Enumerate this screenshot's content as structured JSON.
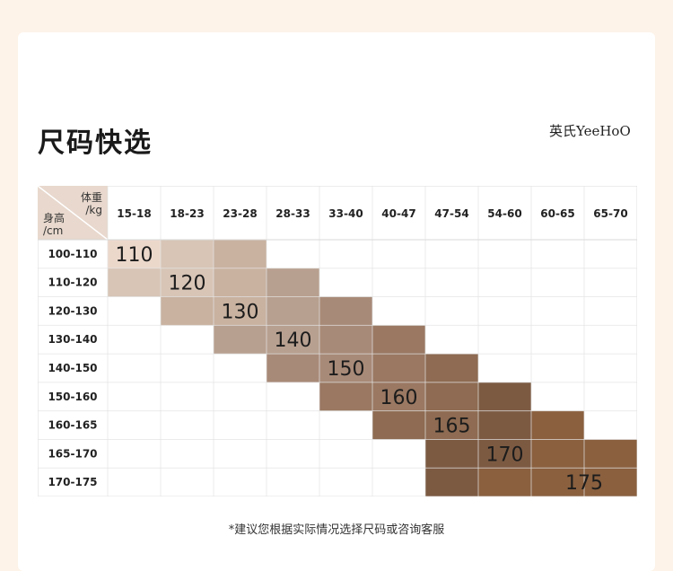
{
  "page": {
    "title": "尺码快选",
    "brand": "英氏YeeHoO",
    "footnote": "*建议您根据实际情况选择尺码或咨询客服"
  },
  "chart_data": {
    "type": "table",
    "corner": {
      "col_header": "体重\n/kg",
      "row_header": "身高\n/cm"
    },
    "columns": [
      "15-18",
      "18-23",
      "23-28",
      "28-33",
      "33-40",
      "40-47",
      "47-54",
      "54-60",
      "60-65",
      "65-70"
    ],
    "rows": [
      "100-110",
      "110-120",
      "120-130",
      "130-140",
      "140-150",
      "150-160",
      "160-165",
      "165-170",
      "170-175"
    ],
    "sizes": [
      {
        "size": "110",
        "cells": [
          [
            0,
            0
          ],
          [
            0,
            1
          ],
          [
            1,
            0
          ],
          [
            1,
            1
          ]
        ],
        "color": "#ecd8cb"
      },
      {
        "size": "120",
        "cells": [
          [
            0,
            1
          ],
          [
            0,
            2
          ],
          [
            1,
            0
          ],
          [
            1,
            1
          ],
          [
            1,
            2
          ],
          [
            2,
            1
          ],
          [
            2,
            2
          ]
        ],
        "color": "#d8c5b6"
      },
      {
        "size": "130",
        "cells": [
          [
            0,
            2
          ],
          [
            1,
            2
          ],
          [
            2,
            1
          ],
          [
            2,
            2
          ],
          [
            2,
            3
          ],
          [
            3,
            2
          ],
          [
            3,
            3
          ]
        ],
        "color": "#c9b2a0"
      },
      {
        "size": "140",
        "cells": [
          [
            1,
            3
          ],
          [
            2,
            3
          ],
          [
            3,
            2
          ],
          [
            3,
            3
          ],
          [
            3,
            4
          ],
          [
            4,
            3
          ],
          [
            4,
            4
          ]
        ],
        "color": "#b8a090"
      },
      {
        "size": "150",
        "cells": [
          [
            2,
            4
          ],
          [
            3,
            4
          ],
          [
            4,
            3
          ],
          [
            4,
            4
          ],
          [
            4,
            5
          ],
          [
            5,
            4
          ],
          [
            5,
            5
          ]
        ],
        "color": "#a88a78"
      },
      {
        "size": "160",
        "cells": [
          [
            3,
            5
          ],
          [
            4,
            5
          ],
          [
            5,
            4
          ],
          [
            5,
            5
          ],
          [
            5,
            6
          ],
          [
            6,
            5
          ],
          [
            6,
            6
          ]
        ],
        "color": "#9a7862"
      },
      {
        "size": "165",
        "cells": [
          [
            4,
            6
          ],
          [
            5,
            6
          ],
          [
            6,
            5
          ],
          [
            6,
            6
          ],
          [
            6,
            7
          ],
          [
            7,
            6
          ],
          [
            7,
            7
          ]
        ],
        "color": "#8e6b52"
      },
      {
        "size": "170",
        "cells": [
          [
            5,
            7
          ],
          [
            6,
            7
          ],
          [
            7,
            6
          ],
          [
            7,
            7
          ],
          [
            7,
            8
          ],
          [
            8,
            6
          ],
          [
            8,
            7
          ],
          [
            8,
            8
          ]
        ],
        "color": "#7c5a42"
      },
      {
        "size": "175",
        "cells": [
          [
            6,
            8
          ],
          [
            7,
            8
          ],
          [
            7,
            9
          ],
          [
            8,
            7
          ],
          [
            8,
            8
          ],
          [
            8,
            9
          ]
        ],
        "color": "#8a603f"
      }
    ],
    "label_cells": {
      "110": [
        0,
        0
      ],
      "120": [
        1,
        1
      ],
      "130": [
        2,
        2
      ],
      "140": [
        3,
        3
      ],
      "150": [
        4,
        4
      ],
      "160": [
        5,
        5
      ],
      "165": [
        6,
        6
      ],
      "170": [
        7,
        7
      ],
      "175": [
        8,
        8
      ]
    },
    "label_offsets": {
      "175": 0.5
    }
  }
}
